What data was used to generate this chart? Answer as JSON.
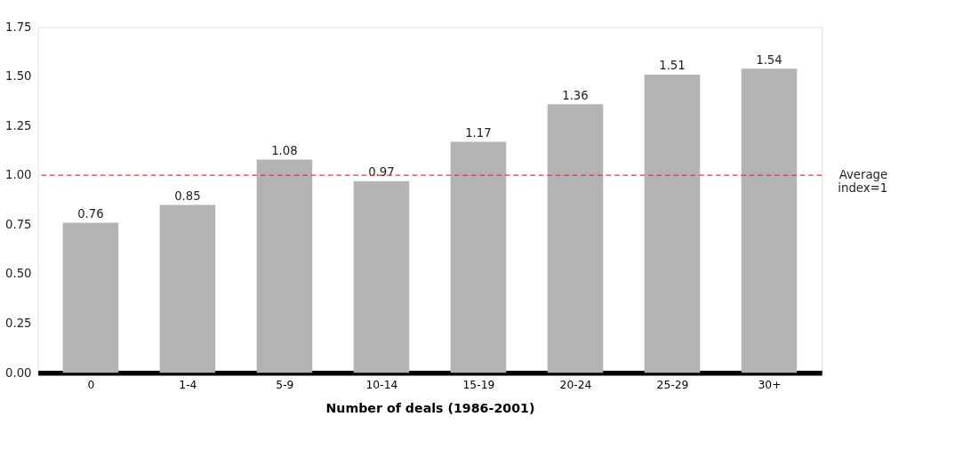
{
  "chart_data": {
    "type": "bar",
    "xlabel": "Number of deals (1986-2001)",
    "categories": [
      "0",
      "1-4",
      "5-9",
      "10-14",
      "15-19",
      "20-24",
      "25-29",
      "30+"
    ],
    "values": [
      0.76,
      0.85,
      1.08,
      0.97,
      1.17,
      1.36,
      1.51,
      1.54
    ],
    "color": "#b3b3b5",
    "data_labels": true,
    "grid": false,
    "ylim": [
      0,
      1.75
    ],
    "yticks": [
      {
        "value": 0,
        "label": "0.00"
      },
      {
        "value": 0.25,
        "label": "0.25"
      },
      {
        "value": 0.5,
        "label": "0.50"
      },
      {
        "value": 0.75,
        "label": "0.75"
      },
      {
        "value": 1,
        "label": "1.00"
      },
      {
        "value": 1.25,
        "label": "1.25"
      },
      {
        "value": 1.5,
        "label": "1.50"
      },
      {
        "value": 1.75,
        "label": "1.75"
      }
    ],
    "ref_lines": [
      {
        "axis": "y",
        "value": 1,
        "label": "Average index=1",
        "color": "#e8323c",
        "line_style": "dashed"
      }
    ]
  }
}
